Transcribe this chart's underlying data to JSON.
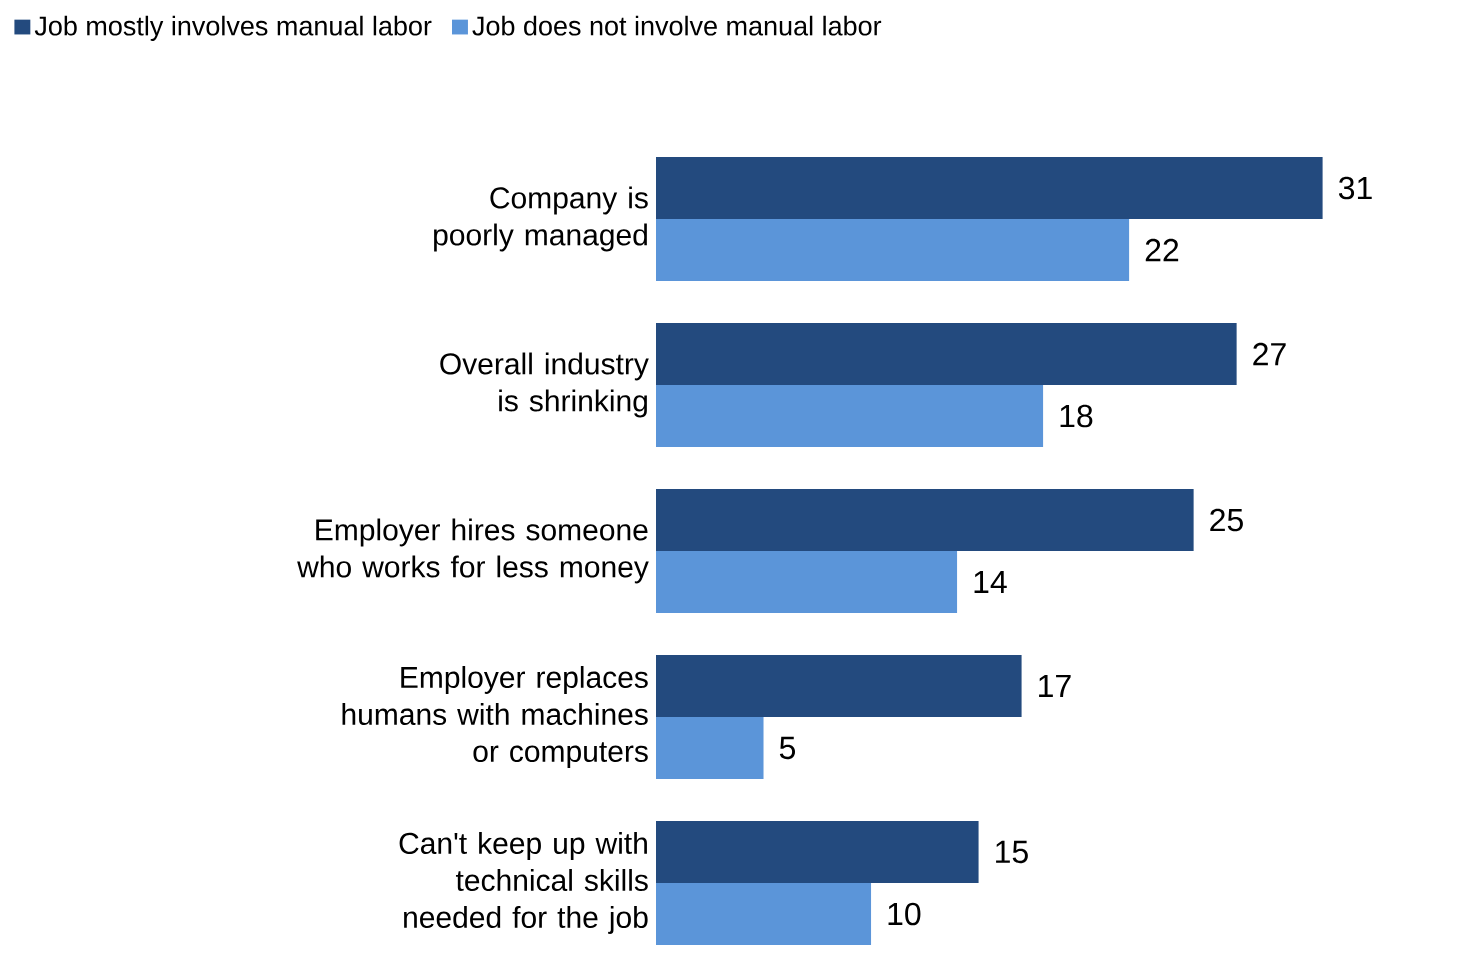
{
  "chart_data": {
    "type": "bar",
    "orientation": "horizontal",
    "categories": [
      "Company is poorly managed",
      "Overall industry is shrinking",
      "Employer hires someone who works for less money",
      "Employer replaces humans with machines or computers",
      "Can't keep up with technical skills needed for the job"
    ],
    "series": [
      {
        "name": "Job mostly involves manual labor",
        "color": "#234a7e",
        "values": [
          31,
          27,
          25,
          17,
          15
        ]
      },
      {
        "name": "Job does not involve manual labor",
        "color": "#5b95d9",
        "values": [
          22,
          18,
          14,
          5,
          10
        ]
      }
    ],
    "data_labels": true,
    "legend": "top left"
  }
}
